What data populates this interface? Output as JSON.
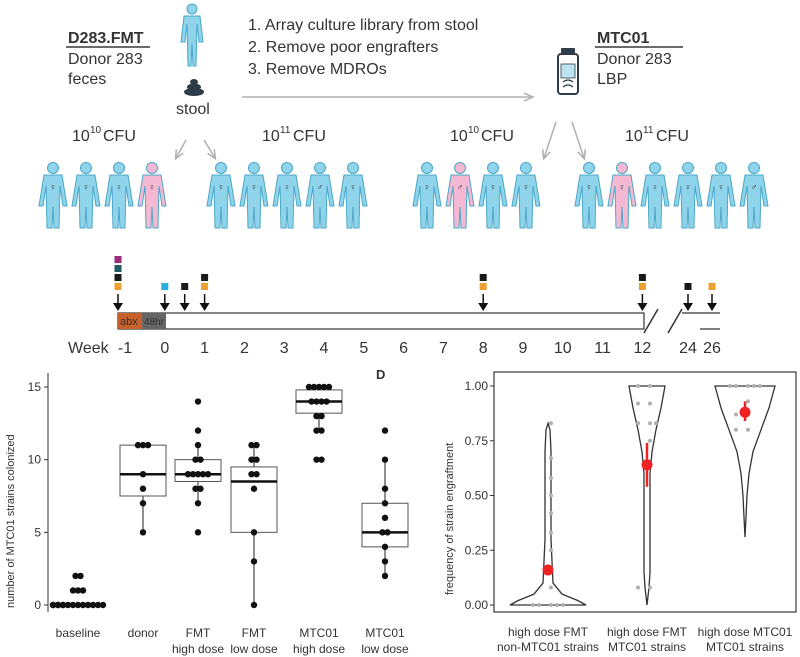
{
  "schematic": {
    "left_product": {
      "name": "D283.FMT",
      "line1": "Donor 283",
      "line2": "feces"
    },
    "right_product": {
      "name": "MTC01",
      "line1": "Donor 283",
      "line2": "LBP"
    },
    "source_label": "stool",
    "steps": [
      "1. Array culture library from stool",
      "2. Remove poor engrafters",
      "3. Remove MDROs"
    ],
    "cohorts": [
      {
        "dose_base": "10",
        "dose_exp": "10",
        "unit": "CFU",
        "sexes": [
          "F",
          "F",
          "F",
          "F"
        ],
        "colors": [
          "blue",
          "blue",
          "blue",
          "pink"
        ]
      },
      {
        "dose_base": "10",
        "dose_exp": "11",
        "unit": "CFU",
        "sexes": [
          "F",
          "F",
          "F",
          "M",
          "F"
        ],
        "colors": [
          "blue",
          "blue",
          "blue",
          "blue",
          "blue"
        ]
      },
      {
        "dose_base": "10",
        "dose_exp": "10",
        "unit": "CFU",
        "sexes": [
          "F",
          "M",
          "F",
          "F"
        ],
        "colors": [
          "blue",
          "pink",
          "blue",
          "blue"
        ]
      },
      {
        "dose_base": "10",
        "dose_exp": "11",
        "unit": "CFU",
        "sexes": [
          "F",
          "F",
          "F",
          "F",
          "F",
          "M"
        ],
        "colors": [
          "blue",
          "pink",
          "blue",
          "blue",
          "blue",
          "blue"
        ]
      }
    ],
    "colors": {
      "person_blue": "#8fd4ea",
      "person_pink": "#f4b8d2",
      "person_stroke": "#4aa8c8"
    }
  },
  "timeline": {
    "week_label": "Week",
    "ticks": [
      "-1",
      "0",
      "1",
      "2",
      "3",
      "4",
      "5",
      "6",
      "7",
      "8",
      "9",
      "10",
      "11",
      "12",
      "24",
      "26"
    ],
    "abx_label": "abx",
    "hr48_label": "48hr",
    "sample_colors": {
      "purple": "#9b2a78",
      "teal": "#1f5a5e",
      "black": "#1a1a1a",
      "orange": "#f0a030",
      "blue": "#29aee2",
      "abx": "#c8602a",
      "hr48": "#666666"
    },
    "markers": [
      {
        "week": "-1",
        "squares": [
          "purple",
          "teal",
          "black",
          "orange"
        ]
      },
      {
        "week": "0",
        "squares": [
          "blue"
        ]
      },
      {
        "week": "0.5",
        "squares": [
          "black"
        ]
      },
      {
        "week": "1",
        "squares": [
          "black",
          "orange"
        ]
      },
      {
        "week": "8",
        "squares": [
          "black",
          "orange"
        ]
      },
      {
        "week": "12",
        "squares": [
          "black",
          "orange"
        ]
      },
      {
        "week": "24",
        "squares": [
          "black"
        ]
      },
      {
        "week": "26",
        "squares": [
          "orange"
        ]
      }
    ]
  },
  "chart_data": [
    {
      "type": "box",
      "ylabel": "number of MTC01 strains colonized",
      "ylim": [
        0,
        15
      ],
      "yticks": [
        0,
        5,
        10,
        15
      ],
      "groups": [
        {
          "label1": "baseline",
          "label2": "",
          "q1": 0,
          "median": 0,
          "q3": 0,
          "min": 0,
          "max": 0,
          "points": [
            0,
            0,
            0,
            0,
            0,
            0,
            0,
            0,
            0,
            0,
            0,
            0,
            0,
            0,
            1,
            1,
            1,
            2,
            2
          ]
        },
        {
          "label1": "donor",
          "label2": "",
          "q1": 7.5,
          "median": 9,
          "q3": 11,
          "min": 5,
          "max": 11,
          "points": [
            11,
            11,
            11,
            9,
            8,
            7,
            5
          ]
        },
        {
          "label1": "FMT",
          "label2": "high dose",
          "q1": 8.5,
          "median": 9,
          "q3": 10,
          "min": 7,
          "max": 11,
          "points": [
            14,
            12,
            11,
            10,
            10,
            9,
            9,
            9,
            9,
            9,
            8,
            8,
            7,
            5
          ]
        },
        {
          "label1": "FMT",
          "label2": "low dose",
          "q1": 5,
          "median": 8.5,
          "q3": 9.5,
          "min": 0,
          "max": 11,
          "points": [
            11,
            11,
            10,
            10,
            9,
            9,
            8,
            5,
            3,
            0
          ]
        },
        {
          "label1": "MTC01",
          "label2": "high dose",
          "q1": 13.2,
          "median": 14,
          "q3": 14.8,
          "min": 12,
          "max": 15,
          "points": [
            15,
            15,
            15,
            15,
            15,
            14,
            14,
            14,
            14,
            13,
            13,
            12,
            12,
            10,
            10
          ]
        },
        {
          "label1": "MTC01",
          "label2": "low dose",
          "q1": 4,
          "median": 5,
          "q3": 7,
          "min": 2,
          "max": 10,
          "points": [
            12,
            10,
            8,
            7,
            6,
            5,
            5,
            4,
            3,
            2
          ]
        }
      ]
    },
    {
      "type": "violin",
      "panel_label": "D",
      "ylabel": "frequency of strain engraftment",
      "ylim": [
        0,
        1
      ],
      "yticks": [
        "0.00",
        "0.25",
        "0.50",
        "0.75",
        "1.00"
      ],
      "groups": [
        {
          "label1": "high dose FMT",
          "label2": "non-MTC01 strains",
          "mean": 0.16,
          "ci": [
            0.14,
            0.18
          ],
          "points": [
            0.83,
            0.67,
            0.58,
            0.5,
            0.42,
            0.33,
            0.25,
            0.17,
            0.08,
            0.0,
            0.0,
            0.0,
            0.0,
            0.0
          ]
        },
        {
          "label1": "high dose FMT",
          "label2": "MTC01 strains",
          "mean": 0.64,
          "ci": [
            0.54,
            0.74
          ],
          "points": [
            1.0,
            1.0,
            0.92,
            0.92,
            0.83,
            0.83,
            0.83,
            0.75,
            0.08,
            0.08
          ]
        },
        {
          "label1": "high dose MTC01",
          "label2": "MTC01 strains",
          "mean": 0.88,
          "ci": [
            0.84,
            0.93
          ],
          "points": [
            1.0,
            1.0,
            1.0,
            1.0,
            1.0,
            0.93,
            0.87,
            0.87,
            0.8,
            0.8
          ]
        }
      ],
      "colors": {
        "mean": "#ee2222",
        "points": "#b0b0b0",
        "outline": "#333333"
      }
    }
  ]
}
